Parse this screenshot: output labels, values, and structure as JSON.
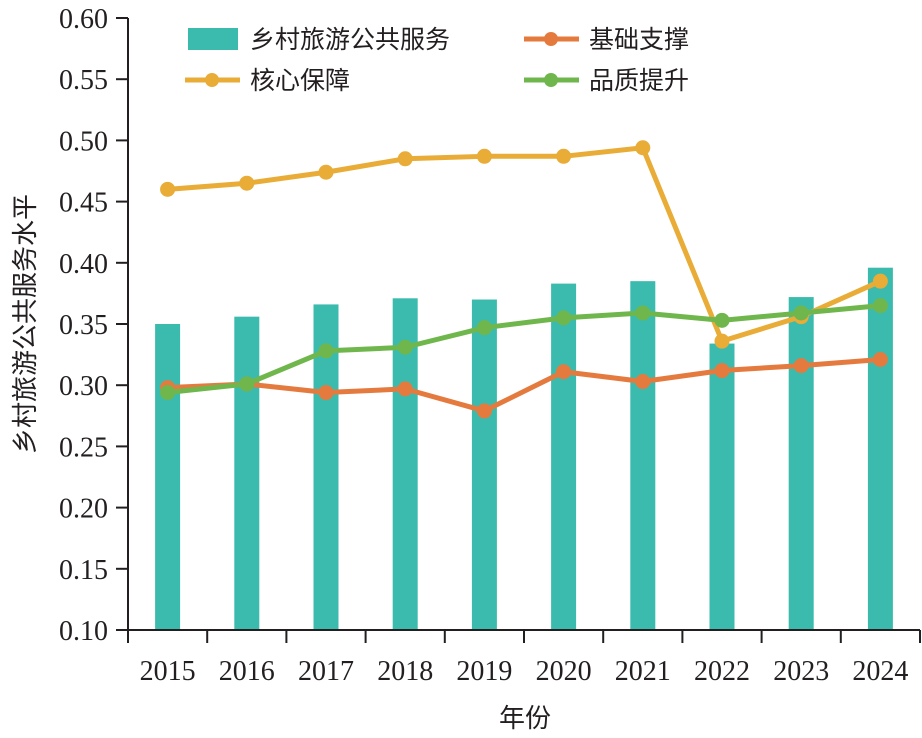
{
  "chart_data": {
    "type": "bar+line",
    "title": "",
    "xlabel": "年份",
    "ylabel": "乡村旅游公共服务水平",
    "ylim": [
      0.1,
      0.6
    ],
    "yticks": [
      "0.10",
      "0.15",
      "0.20",
      "0.25",
      "0.30",
      "0.35",
      "0.40",
      "0.45",
      "0.50",
      "0.55",
      "0.60"
    ],
    "categories": [
      "2015",
      "2016",
      "2017",
      "2018",
      "2019",
      "2020",
      "2021",
      "2022",
      "2023",
      "2024"
    ],
    "grid": false,
    "legend_position": "top",
    "series": [
      {
        "name": "乡村旅游公共服务",
        "type": "bar",
        "color": "#3bbbad",
        "values": [
          0.35,
          0.356,
          0.366,
          0.371,
          0.37,
          0.383,
          0.385,
          0.334,
          0.372,
          0.396
        ]
      },
      {
        "name": "基础支撑",
        "type": "line",
        "color": "#e57a3f",
        "values": [
          0.298,
          0.301,
          0.294,
          0.297,
          0.279,
          0.311,
          0.303,
          0.312,
          0.316,
          0.321
        ]
      },
      {
        "name": "核心保障",
        "type": "line",
        "color": "#e8ac37",
        "values": [
          0.46,
          0.465,
          0.474,
          0.485,
          0.487,
          0.487,
          0.494,
          0.336,
          0.356,
          0.385
        ]
      },
      {
        "name": "品质提升",
        "type": "line",
        "color": "#6fb74c",
        "values": [
          0.294,
          0.301,
          0.328,
          0.331,
          0.347,
          0.355,
          0.359,
          0.353,
          0.359,
          0.365
        ]
      }
    ]
  }
}
